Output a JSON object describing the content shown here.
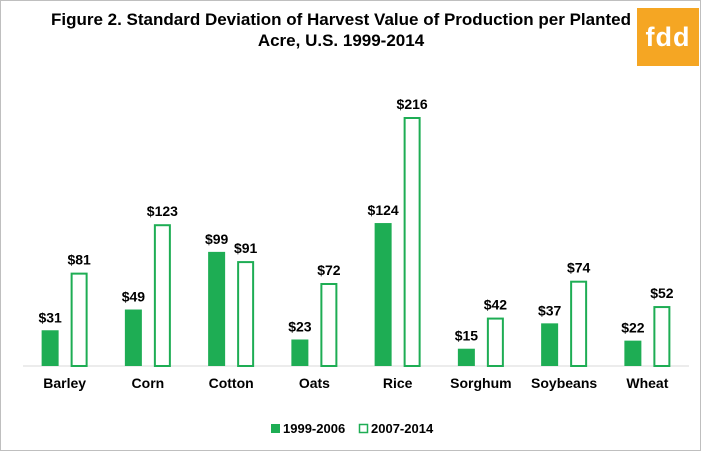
{
  "title": "Figure 2. Standard Deviation of Harvest Value of Production per Planted Acre, U.S. 1999-2014",
  "logo": {
    "text": "fdd",
    "color": "#f5a623"
  },
  "chart_data": {
    "type": "bar",
    "title": "Figure 2. Standard Deviation of Harvest Value of Production per Planted Acre, U.S. 1999-2014",
    "xlabel": "",
    "ylabel": "",
    "ylim": [
      0,
      240
    ],
    "grid": false,
    "legend_position": "bottom",
    "categories": [
      "Barley",
      "Corn",
      "Cotton",
      "Oats",
      "Rice",
      "Sorghum",
      "Soybeans",
      "Wheat"
    ],
    "series": [
      {
        "name": "1999-2006",
        "style": "filled",
        "color": "#1ead54",
        "values": [
          31,
          49,
          99,
          23,
          124,
          15,
          37,
          22
        ],
        "labels": [
          "$31",
          "$49",
          "$99",
          "$23",
          "$124",
          "$15",
          "$37",
          "$22"
        ]
      },
      {
        "name": "2007-2014",
        "style": "outline",
        "color": "#1ead54",
        "values": [
          81,
          123,
          91,
          72,
          216,
          42,
          74,
          52
        ],
        "labels": [
          "$81",
          "$123",
          "$91",
          "$72",
          "$216",
          "$42",
          "$74",
          "$52"
        ]
      }
    ]
  }
}
